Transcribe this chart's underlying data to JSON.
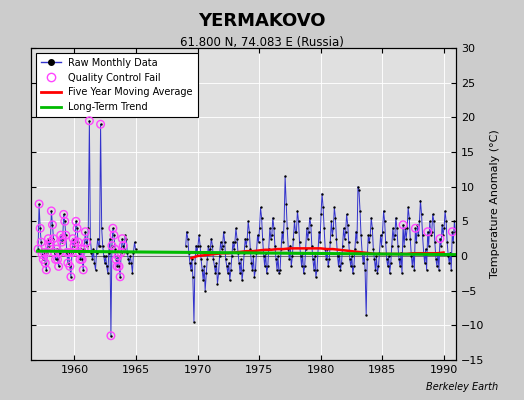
{
  "title": "YERMAKOVO",
  "subtitle": "61.800 N, 74.083 E (Russia)",
  "ylabel": "Temperature Anomaly (°C)",
  "watermark": "Berkeley Earth",
  "xlim": [
    1956.5,
    1991.0
  ],
  "ylim": [
    -15,
    30
  ],
  "yticks": [
    -15,
    -10,
    -5,
    0,
    5,
    10,
    15,
    20,
    25,
    30
  ],
  "xticks": [
    1960,
    1965,
    1970,
    1975,
    1980,
    1985,
    1990
  ],
  "bg_color": "#e0e0e0",
  "grid_color": "#ffffff",
  "raw_color": "#3333cc",
  "qc_color": "#ff44ff",
  "ma_color": "#ff0000",
  "trend_color": "#00bb00",
  "raw_data": [
    [
      1957.04,
      1.0
    ],
    [
      1957.12,
      7.5
    ],
    [
      1957.21,
      4.0
    ],
    [
      1957.29,
      2.0
    ],
    [
      1957.38,
      0.2
    ],
    [
      1957.46,
      -0.5
    ],
    [
      1957.54,
      0.5
    ],
    [
      1957.62,
      -1.0
    ],
    [
      1957.71,
      -2.0
    ],
    [
      1957.79,
      0.5
    ],
    [
      1957.88,
      2.5
    ],
    [
      1957.96,
      1.5
    ],
    [
      1958.04,
      2.0
    ],
    [
      1958.12,
      6.5
    ],
    [
      1958.21,
      4.5
    ],
    [
      1958.29,
      2.5
    ],
    [
      1958.38,
      0.5
    ],
    [
      1958.46,
      -0.5
    ],
    [
      1958.54,
      1.0
    ],
    [
      1958.62,
      -0.5
    ],
    [
      1958.71,
      -1.5
    ],
    [
      1958.79,
      0.5
    ],
    [
      1958.88,
      3.0
    ],
    [
      1958.96,
      2.0
    ],
    [
      1959.04,
      2.5
    ],
    [
      1959.12,
      6.0
    ],
    [
      1959.21,
      5.0
    ],
    [
      1959.29,
      3.0
    ],
    [
      1959.38,
      0.5
    ],
    [
      1959.46,
      -1.0
    ],
    [
      1959.54,
      0.5
    ],
    [
      1959.62,
      -1.5
    ],
    [
      1959.71,
      -3.0
    ],
    [
      1959.79,
      0.5
    ],
    [
      1959.88,
      2.5
    ],
    [
      1959.96,
      1.5
    ],
    [
      1960.04,
      2.0
    ],
    [
      1960.12,
      5.0
    ],
    [
      1960.21,
      4.0
    ],
    [
      1960.29,
      2.0
    ],
    [
      1960.38,
      0.5
    ],
    [
      1960.46,
      -0.5
    ],
    [
      1960.54,
      1.0
    ],
    [
      1960.62,
      -0.5
    ],
    [
      1960.71,
      -2.0
    ],
    [
      1960.79,
      1.0
    ],
    [
      1960.88,
      3.5
    ],
    [
      1960.96,
      2.0
    ],
    [
      1961.04,
      1.5
    ],
    [
      1961.12,
      4.0
    ],
    [
      1961.21,
      19.5
    ],
    [
      1961.29,
      2.5
    ],
    [
      1961.38,
      0.5
    ],
    [
      1961.46,
      -0.5
    ],
    [
      1961.54,
      1.0
    ],
    [
      1961.62,
      -1.0
    ],
    [
      1961.71,
      -2.0
    ],
    [
      1961.79,
      0.5
    ],
    [
      1961.88,
      2.5
    ],
    [
      1961.96,
      1.5
    ],
    [
      1962.04,
      1.5
    ],
    [
      1962.12,
      19.0
    ],
    [
      1962.21,
      4.0
    ],
    [
      1962.29,
      1.5
    ],
    [
      1962.38,
      0.0
    ],
    [
      1962.46,
      -1.0
    ],
    [
      1962.54,
      0.0
    ],
    [
      1962.62,
      -1.5
    ],
    [
      1962.71,
      -2.5
    ],
    [
      1962.79,
      0.5
    ],
    [
      1962.88,
      2.5
    ],
    [
      1962.96,
      -11.5
    ],
    [
      1963.04,
      1.5
    ],
    [
      1963.12,
      4.0
    ],
    [
      1963.21,
      3.0
    ],
    [
      1963.29,
      1.0
    ],
    [
      1963.38,
      -0.5
    ],
    [
      1963.46,
      -1.5
    ],
    [
      1963.54,
      0.0
    ],
    [
      1963.62,
      -1.5
    ],
    [
      1963.71,
      -3.0
    ],
    [
      1963.79,
      0.5
    ],
    [
      1963.88,
      2.5
    ],
    [
      1963.96,
      1.5
    ],
    [
      1964.04,
      1.0
    ],
    [
      1964.12,
      3.0
    ],
    [
      1964.21,
      2.5
    ],
    [
      1964.29,
      0.5
    ],
    [
      1964.38,
      -0.5
    ],
    [
      1964.46,
      -1.0
    ],
    [
      1964.54,
      0.0
    ],
    [
      1964.62,
      -1.0
    ],
    [
      1964.71,
      -2.5
    ],
    [
      1964.79,
      0.5
    ],
    [
      1964.88,
      2.0
    ],
    [
      1964.96,
      1.0
    ],
    [
      1969.04,
      1.5
    ],
    [
      1969.12,
      3.5
    ],
    [
      1969.21,
      2.5
    ],
    [
      1969.29,
      0.5
    ],
    [
      1969.38,
      -1.0
    ],
    [
      1969.46,
      -2.0
    ],
    [
      1969.54,
      -0.5
    ],
    [
      1969.62,
      -3.0
    ],
    [
      1969.71,
      -9.5
    ],
    [
      1969.79,
      -1.0
    ],
    [
      1969.88,
      1.5
    ],
    [
      1969.96,
      0.5
    ],
    [
      1970.04,
      1.5
    ],
    [
      1970.12,
      3.0
    ],
    [
      1970.21,
      1.5
    ],
    [
      1970.29,
      -0.5
    ],
    [
      1970.38,
      -2.0
    ],
    [
      1970.46,
      -3.5
    ],
    [
      1970.54,
      -1.5
    ],
    [
      1970.62,
      -5.0
    ],
    [
      1970.71,
      -2.5
    ],
    [
      1970.79,
      -0.5
    ],
    [
      1970.88,
      1.5
    ],
    [
      1970.96,
      0.5
    ],
    [
      1971.04,
      1.0
    ],
    [
      1971.12,
      2.5
    ],
    [
      1971.21,
      1.5
    ],
    [
      1971.29,
      -0.5
    ],
    [
      1971.38,
      -1.5
    ],
    [
      1971.46,
      -2.5
    ],
    [
      1971.54,
      -1.0
    ],
    [
      1971.62,
      -4.0
    ],
    [
      1971.71,
      -2.5
    ],
    [
      1971.79,
      0.0
    ],
    [
      1971.88,
      2.0
    ],
    [
      1971.96,
      1.0
    ],
    [
      1972.04,
      1.5
    ],
    [
      1972.12,
      3.5
    ],
    [
      1972.21,
      2.0
    ],
    [
      1972.29,
      -0.5
    ],
    [
      1972.38,
      -1.5
    ],
    [
      1972.46,
      -2.5
    ],
    [
      1972.54,
      -1.0
    ],
    [
      1972.62,
      -3.5
    ],
    [
      1972.71,
      -2.0
    ],
    [
      1972.79,
      0.0
    ],
    [
      1972.88,
      2.0
    ],
    [
      1972.96,
      1.0
    ],
    [
      1973.04,
      2.0
    ],
    [
      1973.12,
      4.0
    ],
    [
      1973.21,
      2.5
    ],
    [
      1973.29,
      0.5
    ],
    [
      1973.38,
      -1.0
    ],
    [
      1973.46,
      -2.5
    ],
    [
      1973.54,
      -0.5
    ],
    [
      1973.62,
      -3.5
    ],
    [
      1973.71,
      -2.0
    ],
    [
      1973.79,
      0.5
    ],
    [
      1973.88,
      2.5
    ],
    [
      1973.96,
      1.5
    ],
    [
      1974.04,
      2.5
    ],
    [
      1974.12,
      5.0
    ],
    [
      1974.21,
      3.5
    ],
    [
      1974.29,
      1.0
    ],
    [
      1974.38,
      -1.0
    ],
    [
      1974.46,
      -2.0
    ],
    [
      1974.54,
      0.0
    ],
    [
      1974.62,
      -3.0
    ],
    [
      1974.71,
      -2.0
    ],
    [
      1974.79,
      0.5
    ],
    [
      1974.88,
      3.0
    ],
    [
      1974.96,
      2.0
    ],
    [
      1975.04,
      4.0
    ],
    [
      1975.12,
      7.0
    ],
    [
      1975.21,
      5.5
    ],
    [
      1975.29,
      2.5
    ],
    [
      1975.38,
      0.0
    ],
    [
      1975.46,
      -1.5
    ],
    [
      1975.54,
      0.5
    ],
    [
      1975.62,
      -2.5
    ],
    [
      1975.71,
      -1.5
    ],
    [
      1975.79,
      1.0
    ],
    [
      1975.88,
      4.0
    ],
    [
      1975.96,
      2.5
    ],
    [
      1976.04,
      3.0
    ],
    [
      1976.12,
      5.5
    ],
    [
      1976.21,
      4.0
    ],
    [
      1976.29,
      1.5
    ],
    [
      1976.38,
      -0.5
    ],
    [
      1976.46,
      -2.0
    ],
    [
      1976.54,
      0.0
    ],
    [
      1976.62,
      -2.5
    ],
    [
      1976.71,
      -2.0
    ],
    [
      1976.79,
      1.0
    ],
    [
      1976.88,
      3.5
    ],
    [
      1976.96,
      2.0
    ],
    [
      1977.04,
      5.0
    ],
    [
      1977.12,
      11.5
    ],
    [
      1977.21,
      7.5
    ],
    [
      1977.29,
      4.0
    ],
    [
      1977.38,
      1.0
    ],
    [
      1977.46,
      -0.5
    ],
    [
      1977.54,
      1.5
    ],
    [
      1977.62,
      -1.5
    ],
    [
      1977.71,
      0.0
    ],
    [
      1977.79,
      2.5
    ],
    [
      1977.88,
      5.0
    ],
    [
      1977.96,
      3.5
    ],
    [
      1978.04,
      3.5
    ],
    [
      1978.12,
      6.5
    ],
    [
      1978.21,
      5.0
    ],
    [
      1978.29,
      2.0
    ],
    [
      1978.38,
      0.0
    ],
    [
      1978.46,
      -1.5
    ],
    [
      1978.54,
      0.5
    ],
    [
      1978.62,
      -2.5
    ],
    [
      1978.71,
      -1.5
    ],
    [
      1978.79,
      1.0
    ],
    [
      1978.88,
      4.0
    ],
    [
      1978.96,
      2.5
    ],
    [
      1979.04,
      3.5
    ],
    [
      1979.12,
      5.5
    ],
    [
      1979.21,
      4.5
    ],
    [
      1979.29,
      1.5
    ],
    [
      1979.38,
      -0.5
    ],
    [
      1979.46,
      -2.0
    ],
    [
      1979.54,
      0.0
    ],
    [
      1979.62,
      -3.0
    ],
    [
      1979.71,
      -2.0
    ],
    [
      1979.79,
      0.5
    ],
    [
      1979.88,
      3.5
    ],
    [
      1979.96,
      2.0
    ],
    [
      1980.04,
      6.0
    ],
    [
      1980.12,
      9.0
    ],
    [
      1980.21,
      7.0
    ],
    [
      1980.29,
      4.0
    ],
    [
      1980.38,
      1.0
    ],
    [
      1980.46,
      -0.5
    ],
    [
      1980.54,
      1.0
    ],
    [
      1980.62,
      -1.5
    ],
    [
      1980.71,
      -0.5
    ],
    [
      1980.79,
      2.0
    ],
    [
      1980.88,
      5.0
    ],
    [
      1980.96,
      3.0
    ],
    [
      1981.04,
      4.0
    ],
    [
      1981.12,
      7.0
    ],
    [
      1981.21,
      5.5
    ],
    [
      1981.29,
      2.5
    ],
    [
      1981.38,
      0.0
    ],
    [
      1981.46,
      -1.5
    ],
    [
      1981.54,
      0.5
    ],
    [
      1981.62,
      -2.0
    ],
    [
      1981.71,
      -1.0
    ],
    [
      1981.79,
      1.5
    ],
    [
      1981.88,
      4.0
    ],
    [
      1981.96,
      2.5
    ],
    [
      1982.04,
      3.5
    ],
    [
      1982.12,
      6.0
    ],
    [
      1982.21,
      4.5
    ],
    [
      1982.29,
      2.0
    ],
    [
      1982.38,
      -0.5
    ],
    [
      1982.46,
      -1.5
    ],
    [
      1982.54,
      0.0
    ],
    [
      1982.62,
      -2.5
    ],
    [
      1982.71,
      -1.5
    ],
    [
      1982.79,
      1.0
    ],
    [
      1982.88,
      3.5
    ],
    [
      1982.96,
      2.0
    ],
    [
      1983.04,
      10.0
    ],
    [
      1983.12,
      9.5
    ],
    [
      1983.21,
      6.5
    ],
    [
      1983.29,
      3.0
    ],
    [
      1983.38,
      0.5
    ],
    [
      1983.46,
      -1.0
    ],
    [
      1983.54,
      0.5
    ],
    [
      1983.62,
      -2.0
    ],
    [
      1983.71,
      -8.5
    ],
    [
      1983.79,
      -0.5
    ],
    [
      1983.88,
      3.0
    ],
    [
      1983.96,
      2.0
    ],
    [
      1984.04,
      3.0
    ],
    [
      1984.12,
      5.5
    ],
    [
      1984.21,
      4.0
    ],
    [
      1984.29,
      1.0
    ],
    [
      1984.38,
      -0.5
    ],
    [
      1984.46,
      -2.0
    ],
    [
      1984.54,
      0.0
    ],
    [
      1984.62,
      -2.5
    ],
    [
      1984.71,
      -1.5
    ],
    [
      1984.79,
      0.5
    ],
    [
      1984.88,
      3.0
    ],
    [
      1984.96,
      1.5
    ],
    [
      1985.04,
      3.5
    ],
    [
      1985.12,
      6.5
    ],
    [
      1985.21,
      5.0
    ],
    [
      1985.29,
      2.0
    ],
    [
      1985.38,
      -0.5
    ],
    [
      1985.46,
      -1.5
    ],
    [
      1985.54,
      0.0
    ],
    [
      1985.62,
      -2.5
    ],
    [
      1985.71,
      -1.0
    ],
    [
      1985.79,
      1.5
    ],
    [
      1985.88,
      4.0
    ],
    [
      1985.96,
      2.5
    ],
    [
      1986.04,
      3.0
    ],
    [
      1986.12,
      5.5
    ],
    [
      1986.21,
      4.0
    ],
    [
      1986.29,
      1.5
    ],
    [
      1986.38,
      -0.5
    ],
    [
      1986.46,
      -1.5
    ],
    [
      1986.54,
      0.5
    ],
    [
      1986.62,
      -2.5
    ],
    [
      1986.71,
      4.5
    ],
    [
      1986.79,
      1.5
    ],
    [
      1986.88,
      4.0
    ],
    [
      1986.96,
      2.5
    ],
    [
      1987.04,
      4.0
    ],
    [
      1987.12,
      7.0
    ],
    [
      1987.21,
      5.5
    ],
    [
      1987.29,
      2.5
    ],
    [
      1987.38,
      0.0
    ],
    [
      1987.46,
      -1.5
    ],
    [
      1987.54,
      0.5
    ],
    [
      1987.62,
      -2.0
    ],
    [
      1987.71,
      4.0
    ],
    [
      1987.79,
      2.0
    ],
    [
      1987.88,
      4.5
    ],
    [
      1987.96,
      3.0
    ],
    [
      1988.04,
      5.0
    ],
    [
      1988.12,
      8.0
    ],
    [
      1988.21,
      6.0
    ],
    [
      1988.29,
      3.0
    ],
    [
      1988.38,
      0.5
    ],
    [
      1988.46,
      -1.0
    ],
    [
      1988.54,
      1.0
    ],
    [
      1988.62,
      -2.0
    ],
    [
      1988.71,
      3.5
    ],
    [
      1988.79,
      1.5
    ],
    [
      1988.88,
      5.0
    ],
    [
      1988.96,
      3.0
    ],
    [
      1989.04,
      3.5
    ],
    [
      1989.12,
      6.0
    ],
    [
      1989.21,
      5.0
    ],
    [
      1989.29,
      2.0
    ],
    [
      1989.38,
      -0.5
    ],
    [
      1989.46,
      -1.5
    ],
    [
      1989.54,
      0.5
    ],
    [
      1989.62,
      -2.0
    ],
    [
      1989.71,
      2.5
    ],
    [
      1989.79,
      1.5
    ],
    [
      1989.88,
      4.5
    ],
    [
      1989.96,
      3.0
    ],
    [
      1990.04,
      4.0
    ],
    [
      1990.12,
      6.5
    ],
    [
      1990.21,
      5.0
    ],
    [
      1990.29,
      2.0
    ],
    [
      1990.38,
      0.0
    ],
    [
      1990.46,
      -1.0
    ],
    [
      1990.54,
      0.5
    ],
    [
      1990.62,
      -2.0
    ],
    [
      1990.71,
      3.5
    ],
    [
      1990.79,
      2.0
    ],
    [
      1990.88,
      5.0
    ],
    [
      1990.96,
      3.5
    ]
  ],
  "qc_fail_indices_times": [
    1957.04,
    1957.12,
    1957.21,
    1957.29,
    1957.38,
    1957.46,
    1957.54,
    1957.62,
    1957.71,
    1957.79,
    1957.88,
    1957.96,
    1958.04,
    1958.12,
    1958.21,
    1958.29,
    1958.38,
    1958.46,
    1958.54,
    1958.62,
    1958.71,
    1958.79,
    1958.88,
    1958.96,
    1959.04,
    1959.12,
    1959.21,
    1959.29,
    1959.38,
    1959.46,
    1959.54,
    1959.62,
    1959.71,
    1959.79,
    1959.88,
    1959.96,
    1960.04,
    1960.12,
    1960.21,
    1960.29,
    1960.38,
    1960.46,
    1960.54,
    1960.62,
    1960.71,
    1960.79,
    1960.88,
    1960.96,
    1961.21,
    1962.12,
    1962.96,
    1963.04,
    1963.12,
    1963.21,
    1963.29,
    1963.38,
    1963.46,
    1963.54,
    1963.62,
    1963.71,
    1963.79,
    1963.88,
    1963.96,
    1986.71,
    1987.71,
    1988.71,
    1989.71,
    1990.71
  ],
  "moving_avg_x": [
    1969.5,
    1970.0,
    1970.5,
    1971.0,
    1971.5,
    1972.0,
    1972.5,
    1973.0,
    1973.5,
    1974.0,
    1974.5,
    1975.0,
    1975.5,
    1976.0,
    1976.5,
    1977.0,
    1977.5,
    1978.0,
    1978.5,
    1979.0,
    1979.5,
    1980.0,
    1980.5,
    1981.0,
    1981.5,
    1982.0,
    1982.5,
    1983.0,
    1983.5,
    1984.0,
    1984.5,
    1985.0,
    1985.5,
    1986.0,
    1986.5,
    1987.0,
    1987.5,
    1988.0,
    1988.5,
    1989.0,
    1989.5,
    1990.0
  ],
  "moving_avg_y": [
    -0.3,
    0.0,
    0.1,
    0.2,
    0.3,
    0.4,
    0.4,
    0.5,
    0.6,
    0.7,
    0.7,
    0.8,
    0.9,
    0.9,
    1.0,
    1.0,
    1.1,
    1.1,
    1.1,
    1.1,
    1.1,
    1.1,
    1.0,
    1.0,
    0.9,
    0.8,
    0.7,
    0.6,
    0.5,
    0.4,
    0.3,
    0.3,
    0.3,
    0.3,
    0.3,
    0.3,
    0.4,
    0.4,
    0.4,
    0.4,
    0.4,
    0.5
  ],
  "trend_x": [
    1957.0,
    1991.0
  ],
  "trend_y": [
    0.7,
    0.2
  ]
}
